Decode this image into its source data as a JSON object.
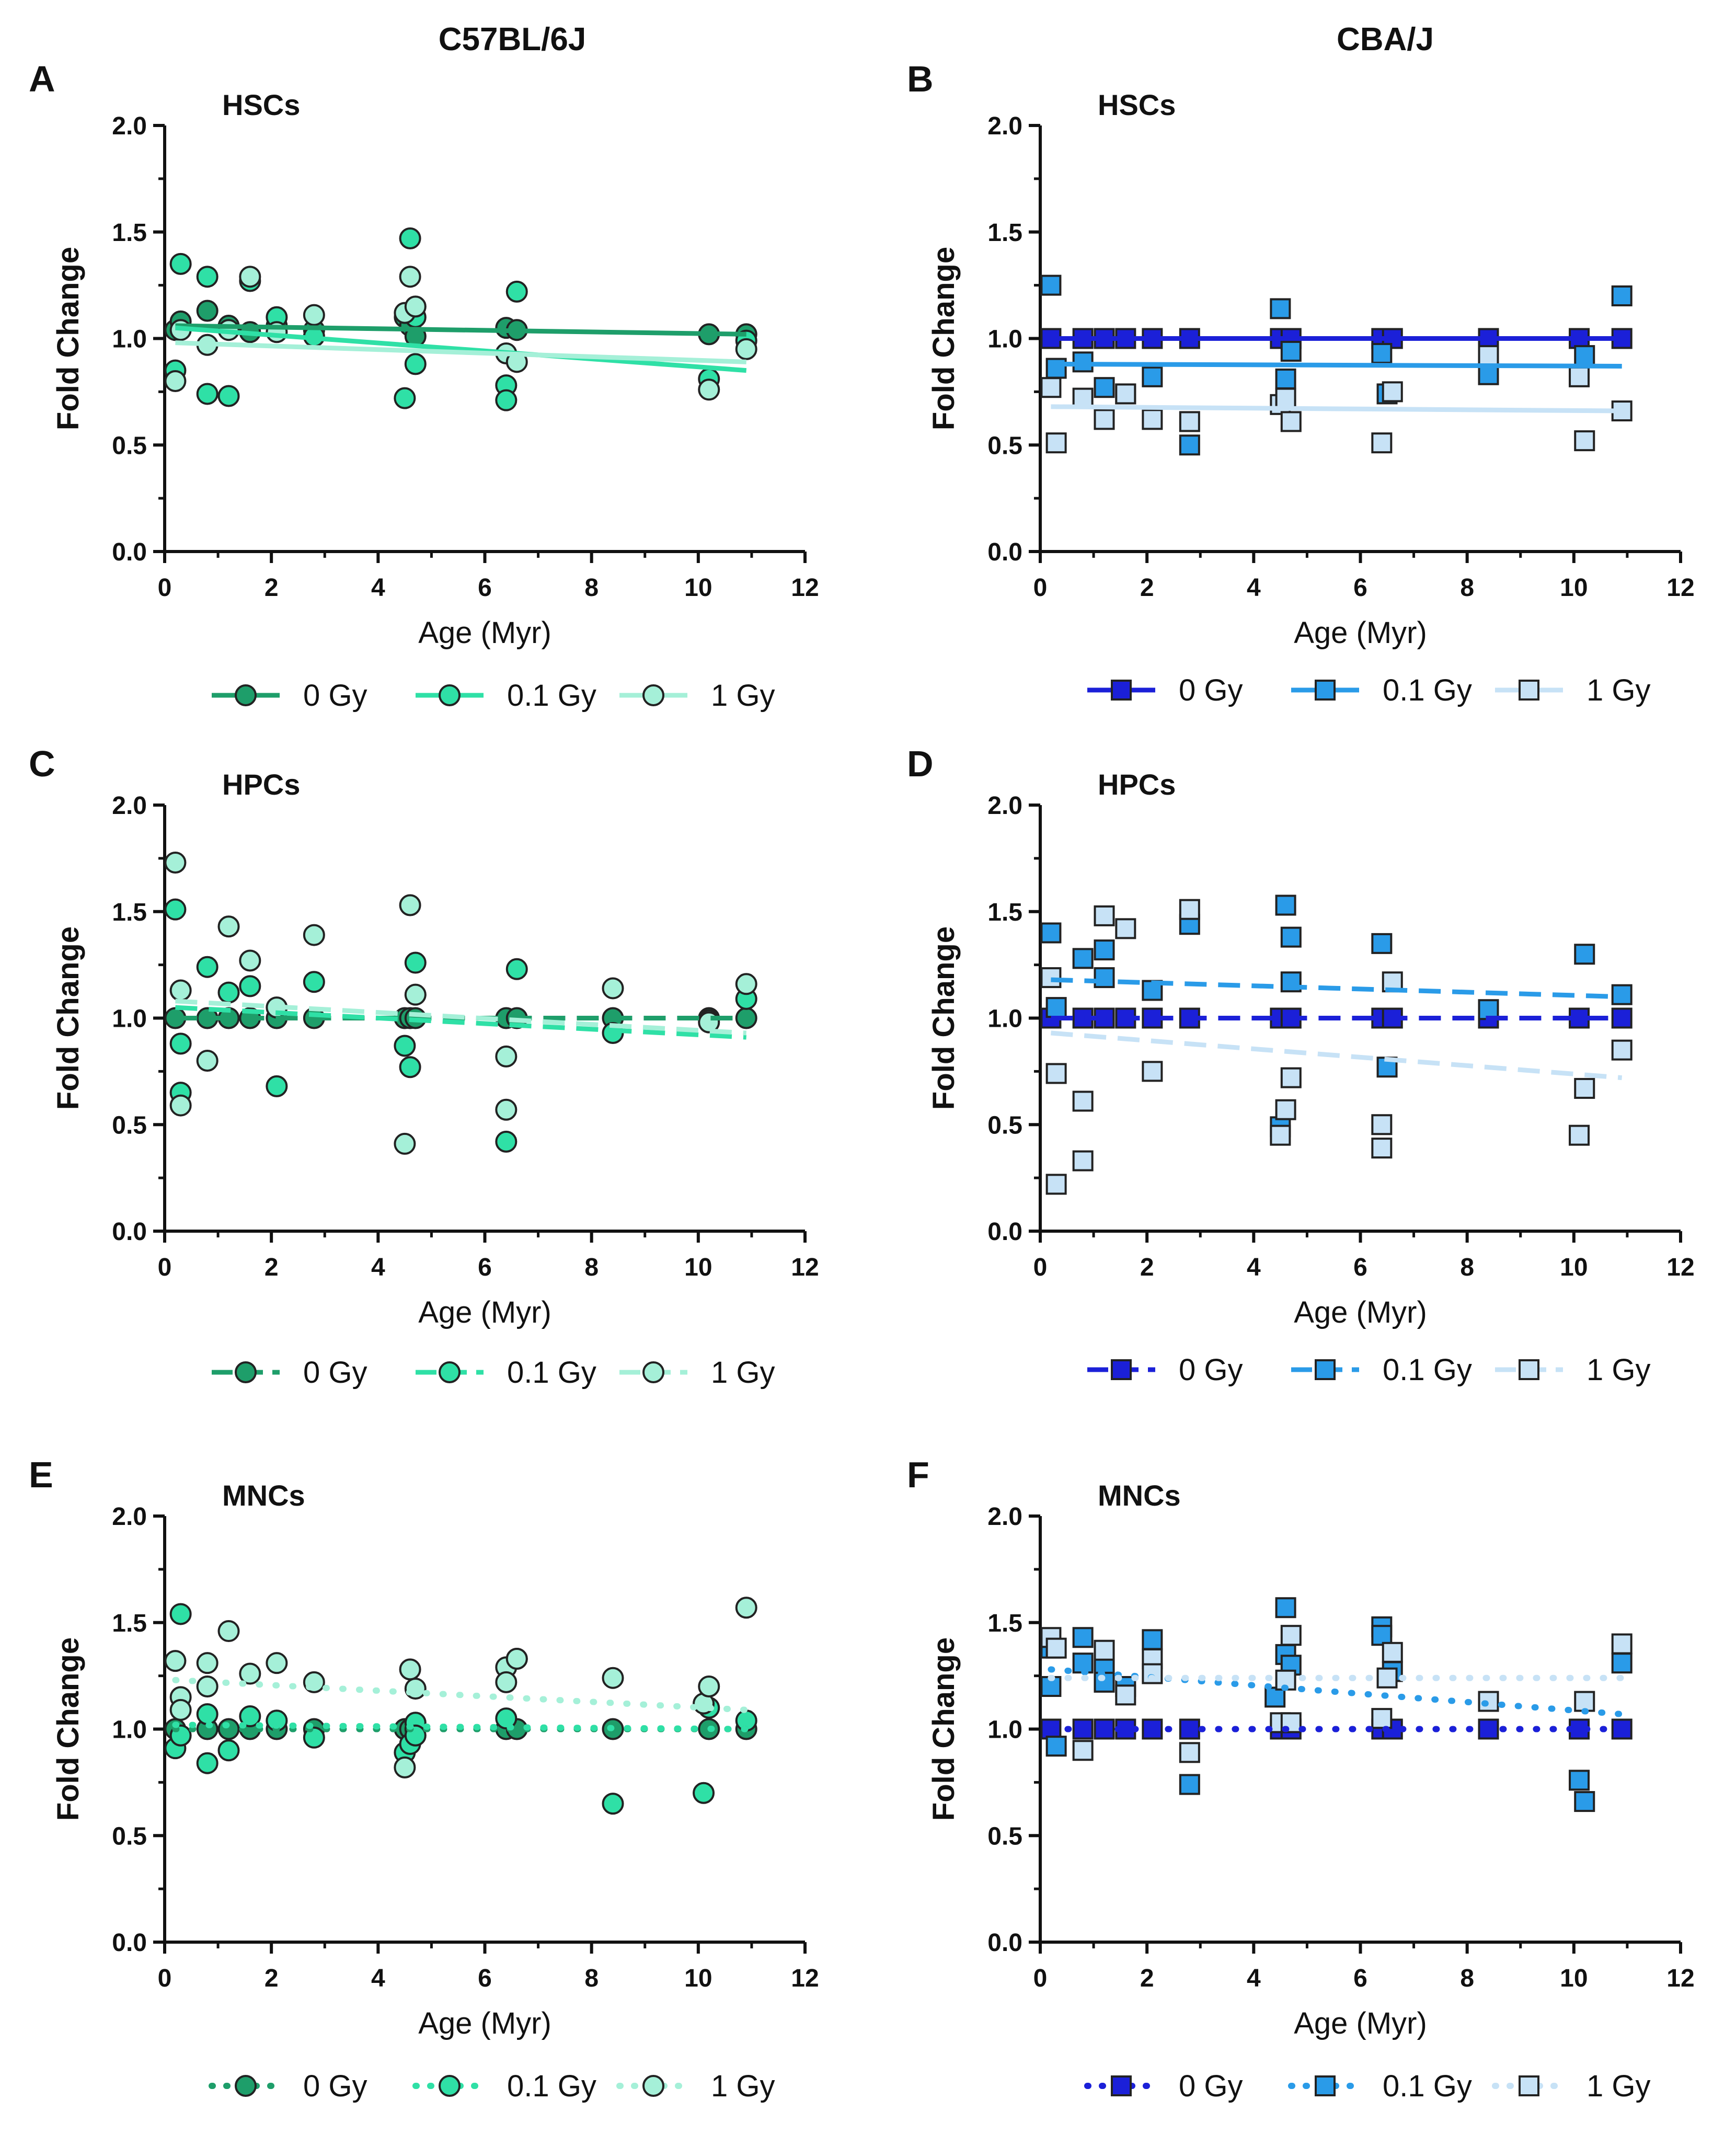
{
  "figure": {
    "column_titles": [
      "C57BL/6J",
      "CBA/J"
    ]
  },
  "chart_data": [
    {
      "panel": "A",
      "strain": "C57BL/6J",
      "title": "HSCs",
      "type": "scatter",
      "xlabel": "Age (Myr)",
      "ylabel": "Fold Change",
      "xlim": [
        0,
        12
      ],
      "ylim": [
        0,
        2
      ],
      "xticks": [
        "0",
        "2",
        "4",
        "6",
        "8",
        "10",
        "12"
      ],
      "yticks": [
        "0.0",
        "0.5",
        "1.0",
        "1.5",
        "2.0"
      ],
      "marker": "circle",
      "line_style": "solid",
      "legend_position": "bottom",
      "series": [
        {
          "name": "0 Gy",
          "color": "#1e9e6a",
          "x": [
            0.2,
            0.3,
            0.8,
            1.2,
            1.6,
            2.1,
            2.8,
            4.5,
            4.6,
            4.7,
            6.4,
            6.6,
            10.2,
            10.9
          ],
          "y": [
            1.04,
            1.08,
            1.13,
            1.06,
            1.03,
            1.06,
            1.04,
            1.1,
            1.06,
            1.01,
            1.05,
            1.04,
            1.02,
            1.02
          ],
          "fit": [
            1.06,
            1.02
          ]
        },
        {
          "name": "0.1 Gy",
          "color": "#2fe0a6",
          "x": [
            0.2,
            0.3,
            0.8,
            0.8,
            1.2,
            1.6,
            2.1,
            2.8,
            4.5,
            4.6,
            4.7,
            4.7,
            6.4,
            6.4,
            6.6,
            10.2,
            10.9
          ],
          "y": [
            0.85,
            1.35,
            1.29,
            0.74,
            0.73,
            1.27,
            1.1,
            1.01,
            0.72,
            1.47,
            1.1,
            0.88,
            0.78,
            0.71,
            1.22,
            0.81,
            0.99
          ],
          "fit": [
            1.05,
            0.85
          ]
        },
        {
          "name": "1 Gy",
          "color": "#a5f0d8",
          "x": [
            0.2,
            0.3,
            0.8,
            1.2,
            1.6,
            2.1,
            2.8,
            4.5,
            4.6,
            4.7,
            6.4,
            6.6,
            10.2,
            10.9
          ],
          "y": [
            0.8,
            1.04,
            0.97,
            1.04,
            1.29,
            1.03,
            1.11,
            1.12,
            1.29,
            1.15,
            0.93,
            0.89,
            0.76,
            0.95
          ],
          "fit": [
            0.98,
            0.89
          ]
        }
      ]
    },
    {
      "panel": "B",
      "strain": "CBA/J",
      "title": "HSCs",
      "type": "scatter",
      "xlabel": "Age (Myr)",
      "ylabel": "Fold Change",
      "xlim": [
        0,
        12
      ],
      "ylim": [
        0,
        2
      ],
      "xticks": [
        "0",
        "2",
        "4",
        "6",
        "8",
        "10",
        "12"
      ],
      "yticks": [
        "0.0",
        "0.5",
        "1.0",
        "1.5",
        "2.0"
      ],
      "marker": "square",
      "line_style": "solid",
      "legend_position": "bottom",
      "series": [
        {
          "name": "0 Gy",
          "color": "#1b20d8",
          "x": [
            0.2,
            0.8,
            1.2,
            1.6,
            2.1,
            2.8,
            4.5,
            4.7,
            6.4,
            6.6,
            8.4,
            10.1,
            10.9
          ],
          "y": [
            1.0,
            1.0,
            1.0,
            1.0,
            1.0,
            1.0,
            1.0,
            1.0,
            1.0,
            1.0,
            1.0,
            1.0,
            1.0
          ],
          "fit": [
            1.0,
            1.0
          ]
        },
        {
          "name": "0.1 Gy",
          "color": "#2a9be8",
          "x": [
            0.2,
            0.3,
            0.8,
            1.2,
            1.6,
            2.1,
            2.8,
            4.5,
            4.6,
            4.7,
            6.4,
            6.5,
            8.4,
            10.2,
            10.9
          ],
          "y": [
            1.25,
            0.86,
            0.89,
            0.77,
            0.74,
            0.82,
            0.5,
            1.14,
            0.81,
            0.94,
            0.93,
            0.74,
            0.83,
            0.92,
            1.2
          ],
          "fit": [
            0.88,
            0.87
          ]
        },
        {
          "name": "1 Gy",
          "color": "#c7e2f6",
          "x": [
            0.2,
            0.3,
            0.8,
            1.2,
            1.6,
            2.1,
            2.8,
            4.5,
            4.6,
            4.7,
            6.4,
            6.6,
            8.4,
            10.1,
            10.2,
            10.9
          ],
          "y": [
            0.77,
            0.51,
            0.72,
            0.62,
            0.74,
            0.62,
            0.61,
            0.69,
            0.72,
            0.61,
            0.51,
            0.75,
            0.92,
            0.82,
            0.52,
            0.66
          ],
          "fit": [
            0.68,
            0.66
          ]
        }
      ]
    },
    {
      "panel": "C",
      "strain": "C57BL/6J",
      "title": "HPCs",
      "type": "scatter",
      "xlabel": "Age (Myr)",
      "ylabel": "Fold Change",
      "xlim": [
        0,
        12
      ],
      "ylim": [
        0,
        2
      ],
      "xticks": [
        "0",
        "2",
        "4",
        "6",
        "8",
        "10",
        "12"
      ],
      "yticks": [
        "0.0",
        "0.5",
        "1.0",
        "1.5",
        "2.0"
      ],
      "marker": "circle",
      "line_style": "dashed",
      "legend_position": "bottom",
      "series": [
        {
          "name": "0 Gy",
          "color": "#1e9e6a",
          "x": [
            0.2,
            0.8,
            1.2,
            1.6,
            2.1,
            2.8,
            4.5,
            4.6,
            4.7,
            6.4,
            6.6,
            8.4,
            10.2,
            10.9
          ],
          "y": [
            1.0,
            1.0,
            1.0,
            1.0,
            1.0,
            1.0,
            1.0,
            1.0,
            1.0,
            1.0,
            1.0,
            1.0,
            1.0,
            1.0
          ],
          "fit": [
            1.0,
            1.0
          ]
        },
        {
          "name": "0.1 Gy",
          "color": "#2fe0a6",
          "x": [
            0.2,
            0.3,
            0.3,
            0.8,
            1.2,
            1.6,
            2.1,
            2.8,
            4.5,
            4.6,
            4.7,
            6.4,
            6.6,
            8.4,
            10.2,
            10.9
          ],
          "y": [
            1.51,
            0.65,
            0.88,
            1.24,
            1.12,
            1.15,
            0.68,
            1.17,
            0.87,
            0.77,
            1.26,
            0.42,
            1.23,
            0.93,
            0.99,
            1.09
          ],
          "fit": [
            1.05,
            0.91
          ]
        },
        {
          "name": "1 Gy",
          "color": "#a5f0d8",
          "x": [
            0.2,
            0.3,
            0.3,
            0.8,
            1.2,
            1.6,
            2.1,
            2.8,
            4.5,
            4.6,
            4.7,
            6.4,
            6.4,
            8.4,
            10.2,
            10.9
          ],
          "y": [
            1.73,
            1.13,
            0.59,
            0.8,
            1.43,
            1.27,
            1.05,
            1.39,
            0.41,
            1.53,
            1.11,
            0.57,
            0.82,
            1.14,
            0.98,
            1.16
          ],
          "fit": [
            1.08,
            0.93
          ]
        }
      ]
    },
    {
      "panel": "D",
      "strain": "CBA/J",
      "title": "HPCs",
      "type": "scatter",
      "xlabel": "Age (Myr)",
      "ylabel": "Fold Change",
      "xlim": [
        0,
        12
      ],
      "ylim": [
        0,
        2
      ],
      "xticks": [
        "0",
        "2",
        "4",
        "6",
        "8",
        "10",
        "12"
      ],
      "yticks": [
        "0.0",
        "0.5",
        "1.0",
        "1.5",
        "2.0"
      ],
      "marker": "square",
      "line_style": "dashed",
      "legend_position": "bottom",
      "series": [
        {
          "name": "0 Gy",
          "color": "#1b20d8",
          "x": [
            0.2,
            0.8,
            1.2,
            1.6,
            2.1,
            2.8,
            4.5,
            4.7,
            6.4,
            6.6,
            8.4,
            10.1,
            10.9
          ],
          "y": [
            1.0,
            1.0,
            1.0,
            1.0,
            1.0,
            1.0,
            1.0,
            1.0,
            1.0,
            1.0,
            1.0,
            1.0,
            1.0
          ],
          "fit": [
            1.0,
            1.0
          ]
        },
        {
          "name": "0.1 Gy",
          "color": "#2a9be8",
          "x": [
            0.2,
            0.3,
            0.8,
            1.2,
            1.2,
            2.1,
            2.8,
            4.5,
            4.6,
            4.7,
            4.7,
            6.4,
            6.5,
            8.4,
            10.2,
            10.9
          ],
          "y": [
            1.4,
            1.05,
            1.28,
            1.32,
            1.19,
            1.13,
            1.44,
            0.49,
            1.53,
            1.38,
            1.17,
            1.35,
            0.77,
            1.04,
            1.3,
            1.11
          ],
          "fit": [
            1.18,
            1.1
          ]
        },
        {
          "name": "1 Gy",
          "color": "#c7e2f6",
          "x": [
            0.2,
            0.3,
            0.3,
            0.8,
            0.8,
            1.2,
            1.6,
            2.1,
            2.8,
            4.5,
            4.6,
            4.7,
            6.4,
            6.4,
            6.6,
            10.1,
            10.2,
            10.9
          ],
          "y": [
            1.19,
            0.74,
            0.22,
            0.61,
            0.33,
            1.48,
            1.42,
            0.75,
            1.51,
            0.45,
            0.57,
            0.72,
            0.5,
            0.39,
            1.17,
            0.45,
            0.67,
            0.85
          ],
          "fit": [
            0.93,
            0.72
          ]
        }
      ]
    },
    {
      "panel": "E",
      "strain": "C57BL/6J",
      "title": "MNCs",
      "type": "scatter",
      "xlabel": "Age (Myr)",
      "ylabel": "Fold Change",
      "xlim": [
        0,
        12
      ],
      "ylim": [
        0,
        2
      ],
      "xticks": [
        "0",
        "2",
        "4",
        "6",
        "8",
        "10",
        "12"
      ],
      "yticks": [
        "0.0",
        "0.5",
        "1.0",
        "1.5",
        "2.0"
      ],
      "marker": "circle",
      "line_style": "dotted",
      "legend_position": "bottom",
      "series": [
        {
          "name": "0 Gy",
          "color": "#1e9e6a",
          "x": [
            0.2,
            0.8,
            1.2,
            1.6,
            2.1,
            2.8,
            4.5,
            4.6,
            4.7,
            6.4,
            6.6,
            8.4,
            10.2,
            10.9
          ],
          "y": [
            1.0,
            1.0,
            1.0,
            1.0,
            1.0,
            1.0,
            1.0,
            1.0,
            1.0,
            1.0,
            1.0,
            1.0,
            1.0,
            1.0
          ],
          "fit": [
            1.0,
            1.0
          ]
        },
        {
          "name": "0.1 Gy",
          "color": "#2fe0a6",
          "x": [
            0.2,
            0.3,
            0.3,
            0.8,
            0.8,
            1.2,
            1.6,
            2.1,
            2.8,
            4.5,
            4.6,
            4.7,
            4.7,
            6.4,
            6.6,
            8.4,
            10.1,
            10.2,
            10.9
          ],
          "y": [
            0.91,
            1.54,
            0.97,
            0.84,
            1.07,
            0.9,
            1.06,
            1.04,
            0.96,
            0.89,
            0.93,
            1.03,
            0.97,
            1.05,
            1.33,
            0.65,
            0.7,
            1.1,
            1.04
          ],
          "fit": [
            1.02,
            1.0
          ]
        },
        {
          "name": "1 Gy",
          "color": "#a5f0d8",
          "x": [
            0.2,
            0.3,
            0.3,
            0.8,
            0.8,
            1.2,
            1.6,
            2.1,
            2.8,
            4.5,
            4.6,
            4.7,
            6.4,
            6.4,
            6.6,
            8.4,
            10.1,
            10.2,
            10.9
          ],
          "y": [
            1.32,
            1.15,
            1.09,
            1.31,
            1.2,
            1.46,
            1.26,
            1.31,
            1.22,
            0.82,
            1.28,
            1.19,
            1.29,
            1.22,
            1.33,
            1.24,
            1.12,
            1.2,
            1.57
          ],
          "fit": [
            1.23,
            1.09
          ]
        }
      ]
    },
    {
      "panel": "F",
      "strain": "CBA/J",
      "title": "MNCs",
      "type": "scatter",
      "xlabel": "Age (Myr)",
      "ylabel": "Fold Change",
      "xlim": [
        0,
        12
      ],
      "ylim": [
        0,
        2
      ],
      "xticks": [
        "0",
        "2",
        "4",
        "6",
        "8",
        "10",
        "12"
      ],
      "yticks": [
        "0.0",
        "0.5",
        "1.0",
        "1.5",
        "2.0"
      ],
      "marker": "square",
      "line_style": "dotted",
      "legend_position": "bottom",
      "series": [
        {
          "name": "0 Gy",
          "color": "#1b20d8",
          "x": [
            0.2,
            0.8,
            1.2,
            1.6,
            2.1,
            2.8,
            4.5,
            4.7,
            6.4,
            6.6,
            8.4,
            10.1,
            10.9
          ],
          "y": [
            1.0,
            1.0,
            1.0,
            1.0,
            1.0,
            1.0,
            1.0,
            1.0,
            1.0,
            1.0,
            1.0,
            1.0,
            1.0
          ],
          "fit": [
            1.0,
            1.0
          ]
        },
        {
          "name": "0.1 Gy",
          "color": "#2a9be8",
          "x": [
            0.2,
            0.2,
            0.3,
            0.8,
            0.8,
            1.2,
            1.2,
            1.6,
            2.1,
            2.8,
            4.4,
            4.6,
            4.6,
            4.7,
            6.4,
            6.4,
            6.6,
            10.1,
            10.2,
            10.9
          ],
          "y": [
            1.38,
            1.2,
            0.92,
            1.43,
            1.31,
            1.29,
            1.22,
            1.2,
            1.42,
            0.74,
            1.15,
            1.57,
            1.35,
            1.3,
            1.48,
            1.44,
            1.27,
            0.76,
            0.66,
            1.31
          ],
          "fit": [
            1.28,
            1.07
          ]
        },
        {
          "name": "1 Gy",
          "color": "#c7e2f6",
          "x": [
            0.2,
            0.3,
            0.8,
            1.2,
            1.6,
            2.1,
            2.1,
            2.8,
            4.5,
            4.6,
            4.7,
            4.7,
            6.4,
            6.5,
            6.6,
            8.4,
            10.2,
            10.9
          ],
          "y": [
            1.43,
            1.38,
            0.9,
            1.37,
            1.16,
            1.33,
            1.26,
            0.89,
            1.03,
            1.23,
            1.44,
            1.03,
            1.05,
            1.24,
            1.36,
            1.13,
            1.13,
            1.4
          ],
          "fit": [
            1.24,
            1.24
          ]
        }
      ]
    }
  ]
}
